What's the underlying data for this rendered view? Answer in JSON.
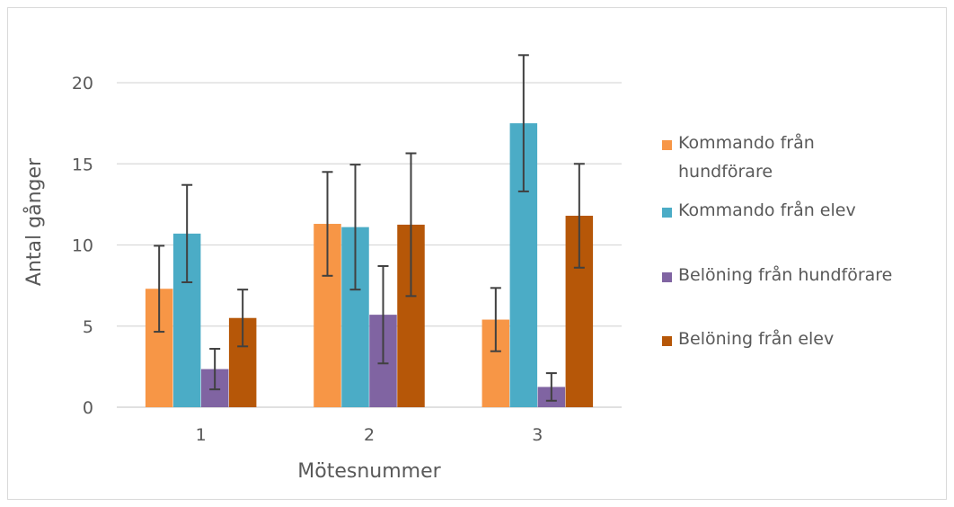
{
  "chart_data": {
    "type": "bar",
    "title": "",
    "xlabel": "Mötesnummer",
    "ylabel": "Antal gånger",
    "categories": [
      "1",
      "2",
      "3"
    ],
    "ylim": [
      0,
      22
    ],
    "yticks": [
      0,
      5,
      10,
      15,
      20
    ],
    "grid": true,
    "legend_position": "right",
    "series": [
      {
        "name": "Kommando från hundförare",
        "color": "#F79646",
        "values": [
          7.3,
          11.3,
          5.4
        ],
        "error": [
          2.65,
          3.2,
          1.95
        ]
      },
      {
        "name": "Kommando från elev",
        "color": "#4BACC6",
        "values": [
          10.7,
          11.1,
          17.5
        ],
        "error": [
          3.0,
          3.85,
          4.2
        ]
      },
      {
        "name": "Belöning från hundförare",
        "color": "#8064A2",
        "values": [
          2.35,
          5.7,
          1.25
        ],
        "error": [
          1.25,
          3.0,
          0.85
        ]
      },
      {
        "name": "Belöning från elev",
        "color": "#B65708",
        "values": [
          5.5,
          11.25,
          11.8
        ],
        "error": [
          1.75,
          4.4,
          3.2
        ]
      }
    ]
  }
}
